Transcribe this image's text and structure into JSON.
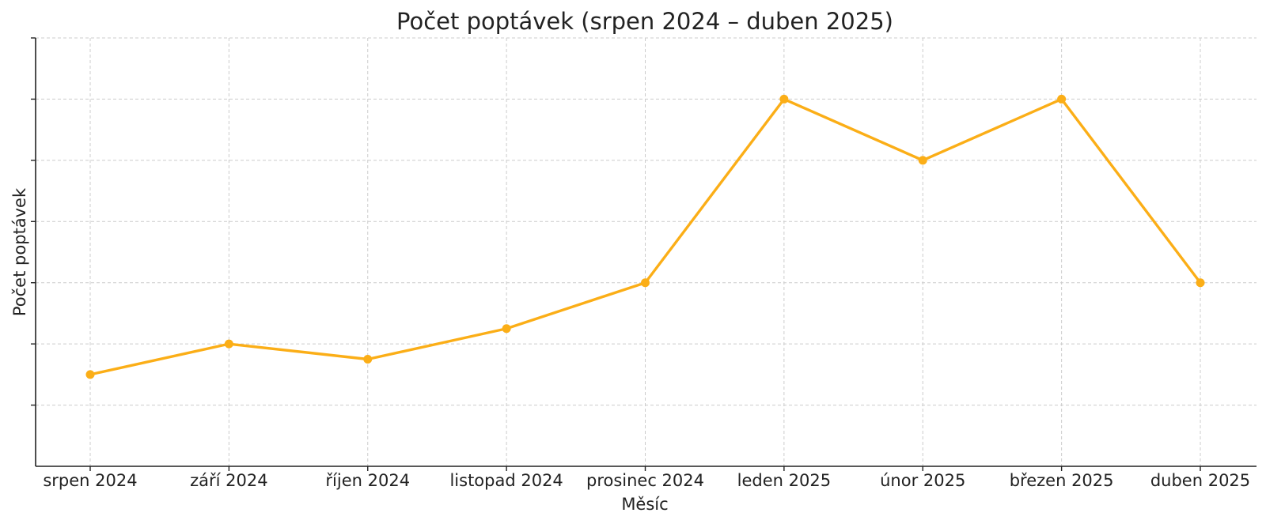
{
  "chart_data": {
    "type": "line",
    "title": "Počet poptávek (srpen 2024 – duben 2025)",
    "xlabel": "Měsíc",
    "ylabel": "Počet poptávek",
    "categories": [
      "srpen 2024",
      "září 2024",
      "říjen 2024",
      "listopad 2024",
      "prosinec 2024",
      "leden 2025",
      "únor 2025",
      "březen 2025",
      "duben 2025"
    ],
    "series": [
      {
        "values": [
          1.5,
          2.0,
          1.75,
          2.25,
          3.0,
          6.0,
          5.0,
          6.0,
          3.0
        ],
        "color": "#FBAE17"
      }
    ],
    "ylim": [
      0,
      7
    ],
    "y_ticks": [
      1,
      2,
      3,
      4,
      5,
      6,
      7
    ],
    "y_tick_labels_visible": false,
    "grid": true,
    "legend": "none"
  }
}
